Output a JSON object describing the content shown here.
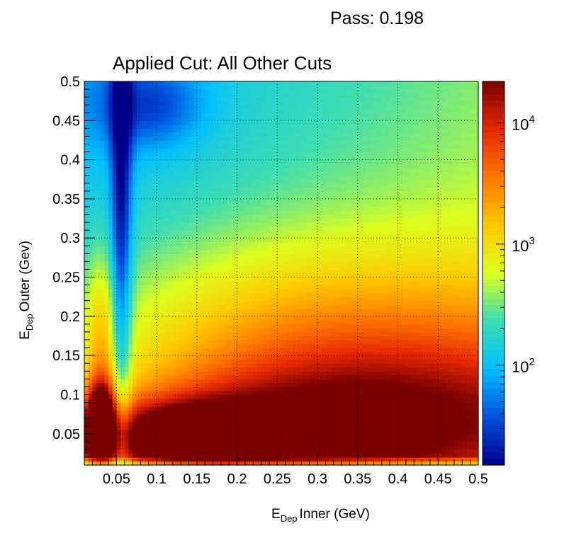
{
  "header": {
    "pass_label": "Pass: 0.198"
  },
  "chart_data": {
    "type": "heatmap",
    "title": "Applied Cut: All Other Cuts",
    "xlabel": {
      "main": "E",
      "sub": "Dep",
      "rest": "Inner (GeV)"
    },
    "ylabel": {
      "main": "E",
      "sub": "Dep",
      "rest": "Outer (Gev)"
    },
    "xlim": [
      0.01,
      0.5
    ],
    "ylim": [
      0.01,
      0.5
    ],
    "x_ticks": [
      0.05,
      0.1,
      0.15,
      0.2,
      0.25,
      0.3,
      0.35,
      0.4,
      0.45,
      0.5
    ],
    "y_ticks": [
      0.05,
      0.1,
      0.15,
      0.2,
      0.25,
      0.3,
      0.35,
      0.4,
      0.45,
      0.5
    ],
    "x_tick_labels": [
      "0.05",
      "0.1",
      "0.15",
      "0.2",
      "0.25",
      "0.3",
      "0.35",
      "0.4",
      "0.45",
      "0.5"
    ],
    "y_tick_labels": [
      "0.05",
      "0.1",
      "0.15",
      "0.2",
      "0.25",
      "0.3",
      "0.35",
      "0.4",
      "0.45",
      "0.5"
    ],
    "grid": true,
    "z_scale": "log",
    "zlim": [
      15,
      22000
    ],
    "z_ticks": [
      100,
      1000,
      10000
    ],
    "z_tick_labels": [
      {
        "base": "10",
        "exp": "2"
      },
      {
        "base": "10",
        "exp": "3"
      },
      {
        "base": "10",
        "exp": "4"
      }
    ],
    "colormap": [
      "#00008b",
      "#0050dc",
      "#00bfff",
      "#3cdcb4",
      "#dcff1e",
      "#ffc800",
      "#ff7800",
      "#e62800",
      "#7a0000"
    ],
    "features": [
      {
        "description": "dominant peak",
        "x": 0.15,
        "y": 0.045,
        "z": 20000
      },
      {
        "description": "secondary peak",
        "x": 0.03,
        "y": 0.065,
        "z": 9000
      },
      {
        "description": "low-count valley",
        "x": 0.055,
        "y": 0.45,
        "z": 20
      }
    ]
  }
}
